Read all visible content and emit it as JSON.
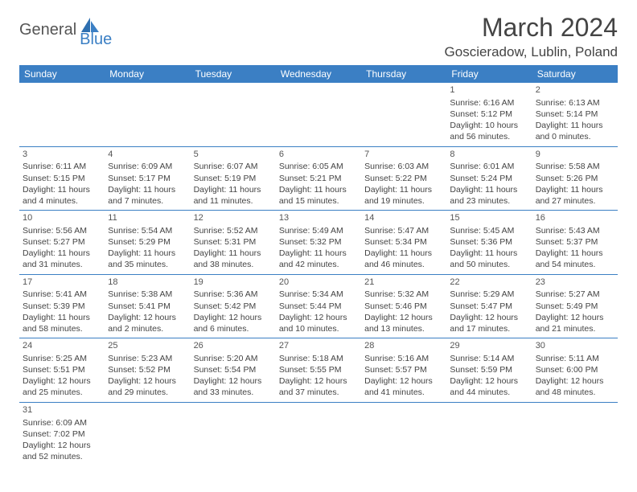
{
  "brand": {
    "part1": "General",
    "part2": "Blue"
  },
  "title": "March 2024",
  "location": "Goscieradow, Lublin, Poland",
  "colors": {
    "header_bg": "#3b7fc4",
    "header_text": "#ffffff",
    "border": "#3b7fc4",
    "text": "#444444",
    "background": "#ffffff"
  },
  "typography": {
    "title_fontsize": 32,
    "location_fontsize": 17,
    "weekday_fontsize": 12,
    "cell_fontsize": 10.5
  },
  "weekdays": [
    "Sunday",
    "Monday",
    "Tuesday",
    "Wednesday",
    "Thursday",
    "Friday",
    "Saturday"
  ],
  "weeks": [
    [
      null,
      null,
      null,
      null,
      null,
      {
        "n": "1",
        "sunrise": "Sunrise: 6:16 AM",
        "sunset": "Sunset: 5:12 PM",
        "daylight": "Daylight: 10 hours and 56 minutes."
      },
      {
        "n": "2",
        "sunrise": "Sunrise: 6:13 AM",
        "sunset": "Sunset: 5:14 PM",
        "daylight": "Daylight: 11 hours and 0 minutes."
      }
    ],
    [
      {
        "n": "3",
        "sunrise": "Sunrise: 6:11 AM",
        "sunset": "Sunset: 5:15 PM",
        "daylight": "Daylight: 11 hours and 4 minutes."
      },
      {
        "n": "4",
        "sunrise": "Sunrise: 6:09 AM",
        "sunset": "Sunset: 5:17 PM",
        "daylight": "Daylight: 11 hours and 7 minutes."
      },
      {
        "n": "5",
        "sunrise": "Sunrise: 6:07 AM",
        "sunset": "Sunset: 5:19 PM",
        "daylight": "Daylight: 11 hours and 11 minutes."
      },
      {
        "n": "6",
        "sunrise": "Sunrise: 6:05 AM",
        "sunset": "Sunset: 5:21 PM",
        "daylight": "Daylight: 11 hours and 15 minutes."
      },
      {
        "n": "7",
        "sunrise": "Sunrise: 6:03 AM",
        "sunset": "Sunset: 5:22 PM",
        "daylight": "Daylight: 11 hours and 19 minutes."
      },
      {
        "n": "8",
        "sunrise": "Sunrise: 6:01 AM",
        "sunset": "Sunset: 5:24 PM",
        "daylight": "Daylight: 11 hours and 23 minutes."
      },
      {
        "n": "9",
        "sunrise": "Sunrise: 5:58 AM",
        "sunset": "Sunset: 5:26 PM",
        "daylight": "Daylight: 11 hours and 27 minutes."
      }
    ],
    [
      {
        "n": "10",
        "sunrise": "Sunrise: 5:56 AM",
        "sunset": "Sunset: 5:27 PM",
        "daylight": "Daylight: 11 hours and 31 minutes."
      },
      {
        "n": "11",
        "sunrise": "Sunrise: 5:54 AM",
        "sunset": "Sunset: 5:29 PM",
        "daylight": "Daylight: 11 hours and 35 minutes."
      },
      {
        "n": "12",
        "sunrise": "Sunrise: 5:52 AM",
        "sunset": "Sunset: 5:31 PM",
        "daylight": "Daylight: 11 hours and 38 minutes."
      },
      {
        "n": "13",
        "sunrise": "Sunrise: 5:49 AM",
        "sunset": "Sunset: 5:32 PM",
        "daylight": "Daylight: 11 hours and 42 minutes."
      },
      {
        "n": "14",
        "sunrise": "Sunrise: 5:47 AM",
        "sunset": "Sunset: 5:34 PM",
        "daylight": "Daylight: 11 hours and 46 minutes."
      },
      {
        "n": "15",
        "sunrise": "Sunrise: 5:45 AM",
        "sunset": "Sunset: 5:36 PM",
        "daylight": "Daylight: 11 hours and 50 minutes."
      },
      {
        "n": "16",
        "sunrise": "Sunrise: 5:43 AM",
        "sunset": "Sunset: 5:37 PM",
        "daylight": "Daylight: 11 hours and 54 minutes."
      }
    ],
    [
      {
        "n": "17",
        "sunrise": "Sunrise: 5:41 AM",
        "sunset": "Sunset: 5:39 PM",
        "daylight": "Daylight: 11 hours and 58 minutes."
      },
      {
        "n": "18",
        "sunrise": "Sunrise: 5:38 AM",
        "sunset": "Sunset: 5:41 PM",
        "daylight": "Daylight: 12 hours and 2 minutes."
      },
      {
        "n": "19",
        "sunrise": "Sunrise: 5:36 AM",
        "sunset": "Sunset: 5:42 PM",
        "daylight": "Daylight: 12 hours and 6 minutes."
      },
      {
        "n": "20",
        "sunrise": "Sunrise: 5:34 AM",
        "sunset": "Sunset: 5:44 PM",
        "daylight": "Daylight: 12 hours and 10 minutes."
      },
      {
        "n": "21",
        "sunrise": "Sunrise: 5:32 AM",
        "sunset": "Sunset: 5:46 PM",
        "daylight": "Daylight: 12 hours and 13 minutes."
      },
      {
        "n": "22",
        "sunrise": "Sunrise: 5:29 AM",
        "sunset": "Sunset: 5:47 PM",
        "daylight": "Daylight: 12 hours and 17 minutes."
      },
      {
        "n": "23",
        "sunrise": "Sunrise: 5:27 AM",
        "sunset": "Sunset: 5:49 PM",
        "daylight": "Daylight: 12 hours and 21 minutes."
      }
    ],
    [
      {
        "n": "24",
        "sunrise": "Sunrise: 5:25 AM",
        "sunset": "Sunset: 5:51 PM",
        "daylight": "Daylight: 12 hours and 25 minutes."
      },
      {
        "n": "25",
        "sunrise": "Sunrise: 5:23 AM",
        "sunset": "Sunset: 5:52 PM",
        "daylight": "Daylight: 12 hours and 29 minutes."
      },
      {
        "n": "26",
        "sunrise": "Sunrise: 5:20 AM",
        "sunset": "Sunset: 5:54 PM",
        "daylight": "Daylight: 12 hours and 33 minutes."
      },
      {
        "n": "27",
        "sunrise": "Sunrise: 5:18 AM",
        "sunset": "Sunset: 5:55 PM",
        "daylight": "Daylight: 12 hours and 37 minutes."
      },
      {
        "n": "28",
        "sunrise": "Sunrise: 5:16 AM",
        "sunset": "Sunset: 5:57 PM",
        "daylight": "Daylight: 12 hours and 41 minutes."
      },
      {
        "n": "29",
        "sunrise": "Sunrise: 5:14 AM",
        "sunset": "Sunset: 5:59 PM",
        "daylight": "Daylight: 12 hours and 44 minutes."
      },
      {
        "n": "30",
        "sunrise": "Sunrise: 5:11 AM",
        "sunset": "Sunset: 6:00 PM",
        "daylight": "Daylight: 12 hours and 48 minutes."
      }
    ],
    [
      {
        "n": "31",
        "sunrise": "Sunrise: 6:09 AM",
        "sunset": "Sunset: 7:02 PM",
        "daylight": "Daylight: 12 hours and 52 minutes."
      },
      null,
      null,
      null,
      null,
      null,
      null
    ]
  ]
}
